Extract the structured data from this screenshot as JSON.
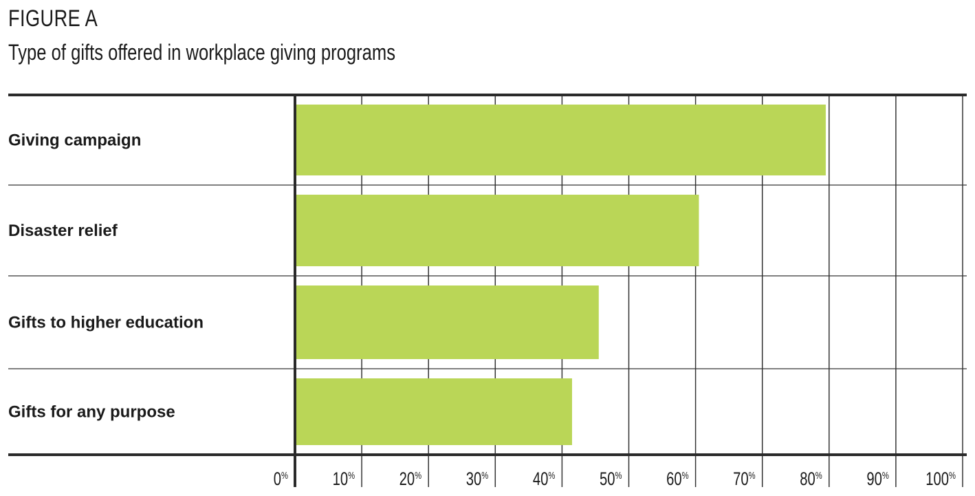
{
  "header": {
    "figure_label": "FIGURE A",
    "title": "Type of gifts offered in workplace giving programs"
  },
  "colors": {
    "bar": "#bad657",
    "lines": "#2a2a2a",
    "grid": "#333333"
  },
  "chart_data": {
    "type": "bar",
    "orientation": "horizontal",
    "title": "Type of gifts offered in workplace giving programs",
    "categories": [
      "Giving campaign",
      "Disaster relief",
      "Gifts to higher education",
      "Gifts for any purpose"
    ],
    "values": [
      79.5,
      60.5,
      45.5,
      41.5
    ],
    "xlim": [
      0,
      100
    ],
    "ticks": [
      0,
      10,
      20,
      30,
      40,
      50,
      60,
      70,
      80,
      90,
      100
    ],
    "tick_unit": "%",
    "grid": true
  }
}
